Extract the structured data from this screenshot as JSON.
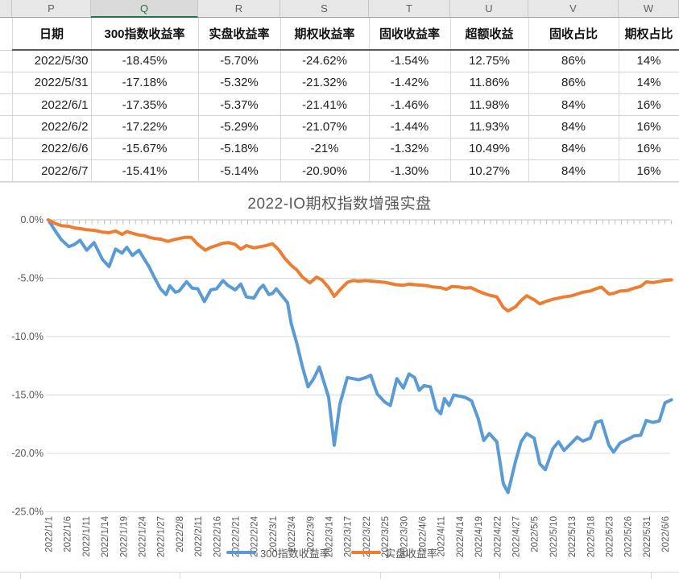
{
  "spreadsheet": {
    "column_letters": [
      "P",
      "Q",
      "R",
      "S",
      "T",
      "U",
      "V",
      "W"
    ],
    "selected_column": "Q",
    "table": {
      "headers": [
        "日期",
        "300指数收益率",
        "实盘收益率",
        "期权收益率",
        "固收收益率",
        "超额收益",
        "固收占比",
        "期权占比"
      ],
      "rows": [
        [
          "2022/5/30",
          "-18.45%",
          "-5.70%",
          "-24.62%",
          "-1.54%",
          "12.75%",
          "86%",
          "14%"
        ],
        [
          "2022/5/31",
          "-17.18%",
          "-5.32%",
          "-21.32%",
          "-1.42%",
          "11.86%",
          "86%",
          "14%"
        ],
        [
          "2022/6/1",
          "-17.35%",
          "-5.37%",
          "-21.41%",
          "-1.46%",
          "11.98%",
          "84%",
          "16%"
        ],
        [
          "2022/6/2",
          "-17.22%",
          "-5.29%",
          "-21.07%",
          "-1.44%",
          "11.93%",
          "84%",
          "16%"
        ],
        [
          "2022/6/6",
          "-15.67%",
          "-5.18%",
          "-21%",
          "-1.32%",
          "10.49%",
          "84%",
          "16%"
        ],
        [
          "2022/6/7",
          "-15.41%",
          "-5.14%",
          "-20.90%",
          "-1.30%",
          "10.27%",
          "84%",
          "16%"
        ]
      ]
    }
  },
  "chart_data": {
    "type": "line",
    "title": "2022-IO期权指数增强实盘",
    "grid": true,
    "legend_position": "bottom",
    "colors": {
      "index_series": "#5B9BD5",
      "fund_series": "#ED7D31",
      "axis_text": "#595959",
      "gridline": "#d9d9d9",
      "axis_line": "#bfbfbf"
    },
    "y_axis": {
      "unit": "%",
      "min": -25,
      "max": 0,
      "tick_values": [
        0,
        -5,
        -10,
        -15,
        -20,
        -25
      ],
      "tick_labels": [
        "0.0%",
        "-5.0%",
        "-10.0%",
        "-15.0%",
        "-20.0%",
        "-25.0%"
      ]
    },
    "categories": [
      "2022/1/1",
      "2022/1/6",
      "2022/1/11",
      "2022/1/14",
      "2022/1/19",
      "2022/1/24",
      "2022/1/27",
      "2022/2/8",
      "2022/2/11",
      "2022/2/16",
      "2022/2/21",
      "2022/2/24",
      "2022/3/1",
      "2022/3/4",
      "2022/3/9",
      "2022/3/14",
      "2022/3/17",
      "2022/3/22",
      "2022/3/25",
      "2022/3/30",
      "2022/4/6",
      "2022/4/11",
      "2022/4/14",
      "2022/4/19",
      "2022/4/22",
      "2022/4/27",
      "2022/5/5",
      "2022/5/10",
      "2022/5/13",
      "2022/5/18",
      "2022/5/23",
      "2022/5/26",
      "2022/5/31",
      "2022/6/6"
    ],
    "series": [
      {
        "name": "300指数收益率",
        "color": "#5B9BD5",
        "points": [
          [
            0,
            0
          ],
          [
            0.35,
            -0.9
          ],
          [
            0.7,
            -1.7
          ],
          [
            1.1,
            -2.3
          ],
          [
            1.4,
            -2.1
          ],
          [
            1.7,
            -1.75
          ],
          [
            2.05,
            -2.6
          ],
          [
            2.45,
            -1.95
          ],
          [
            2.9,
            -3.4
          ],
          [
            3.25,
            -4.0
          ],
          [
            3.6,
            -2.5
          ],
          [
            3.95,
            -2.85
          ],
          [
            4.2,
            -2.35
          ],
          [
            4.5,
            -3.05
          ],
          [
            4.85,
            -2.6
          ],
          [
            5.15,
            -3.4
          ],
          [
            5.4,
            -4.05
          ],
          [
            5.7,
            -5.0
          ],
          [
            6,
            -5.9
          ],
          [
            6.3,
            -6.4
          ],
          [
            6.5,
            -5.65
          ],
          [
            6.8,
            -6.2
          ],
          [
            7,
            -6.1
          ],
          [
            7.4,
            -5.3
          ],
          [
            7.7,
            -5.85
          ],
          [
            8,
            -5.9
          ],
          [
            8.35,
            -7.0
          ],
          [
            8.7,
            -6.0
          ],
          [
            9,
            -5.9
          ],
          [
            9.35,
            -5.2
          ],
          [
            9.6,
            -5.6
          ],
          [
            10,
            -6.0
          ],
          [
            10.3,
            -5.5
          ],
          [
            10.6,
            -6.6
          ],
          [
            11,
            -6.7
          ],
          [
            11.3,
            -5.9
          ],
          [
            11.5,
            -5.6
          ],
          [
            11.8,
            -6.4
          ],
          [
            12,
            -6.3
          ],
          [
            12.2,
            -5.9
          ],
          [
            12.5,
            -6.5
          ],
          [
            12.8,
            -7.1
          ],
          [
            13,
            -8.9
          ],
          [
            13.3,
            -10.6
          ],
          [
            13.6,
            -12.6
          ],
          [
            13.9,
            -14.3
          ],
          [
            14.2,
            -13.6
          ],
          [
            14.5,
            -12.6
          ],
          [
            15,
            -15.2
          ],
          [
            15.3,
            -19.3
          ],
          [
            15.6,
            -15.8
          ],
          [
            16,
            -13.5
          ],
          [
            16.3,
            -13.6
          ],
          [
            16.6,
            -13.7
          ],
          [
            17,
            -13.5
          ],
          [
            17.25,
            -13.3
          ],
          [
            17.6,
            -14.9
          ],
          [
            18,
            -15.6
          ],
          [
            18.3,
            -15.9
          ],
          [
            18.65,
            -13.6
          ],
          [
            19,
            -14.4
          ],
          [
            19.3,
            -13.2
          ],
          [
            19.6,
            -13.5
          ],
          [
            19.85,
            -14.6
          ],
          [
            20.1,
            -14.2
          ],
          [
            20.45,
            -14.3
          ],
          [
            20.75,
            -16.2
          ],
          [
            21,
            -16.6
          ],
          [
            21.2,
            -15.3
          ],
          [
            21.45,
            -15.9
          ],
          [
            21.7,
            -15.0
          ],
          [
            22,
            -15.1
          ],
          [
            22.3,
            -15.2
          ],
          [
            22.65,
            -15.5
          ],
          [
            23,
            -17.0
          ],
          [
            23.3,
            -18.9
          ],
          [
            23.6,
            -18.3
          ],
          [
            24,
            -19.0
          ],
          [
            24.35,
            -22.6
          ],
          [
            24.6,
            -23.35
          ],
          [
            25,
            -20.7
          ],
          [
            25.3,
            -19.0
          ],
          [
            25.6,
            -18.3
          ],
          [
            26,
            -18.7
          ],
          [
            26.3,
            -20.9
          ],
          [
            26.6,
            -21.4
          ],
          [
            27,
            -19.6
          ],
          [
            27.3,
            -19.0
          ],
          [
            27.6,
            -19.75
          ],
          [
            28,
            -19.1
          ],
          [
            28.3,
            -18.6
          ],
          [
            28.6,
            -18.95
          ],
          [
            29,
            -18.7
          ],
          [
            29.3,
            -17.35
          ],
          [
            29.6,
            -17.2
          ],
          [
            30,
            -19.3
          ],
          [
            30.25,
            -19.9
          ],
          [
            30.6,
            -19.1
          ],
          [
            31,
            -18.8
          ],
          [
            31.35,
            -18.5
          ],
          [
            31.7,
            -18.45
          ],
          [
            32,
            -17.18
          ],
          [
            32.35,
            -17.35
          ],
          [
            32.7,
            -17.22
          ],
          [
            33,
            -15.67
          ],
          [
            33.35,
            -15.41
          ]
        ]
      },
      {
        "name": "实盘收益率",
        "color": "#ED7D31",
        "points": [
          [
            0,
            0
          ],
          [
            0.35,
            -0.3
          ],
          [
            0.7,
            -0.5
          ],
          [
            1.1,
            -0.55
          ],
          [
            1.4,
            -0.7
          ],
          [
            1.7,
            -0.75
          ],
          [
            2.05,
            -0.85
          ],
          [
            2.45,
            -0.9
          ],
          [
            2.9,
            -1.05
          ],
          [
            3.25,
            -1.1
          ],
          [
            3.6,
            -0.95
          ],
          [
            3.95,
            -1.25
          ],
          [
            4.2,
            -1.0
          ],
          [
            4.5,
            -1.15
          ],
          [
            4.85,
            -1.3
          ],
          [
            5.15,
            -1.35
          ],
          [
            5.4,
            -1.5
          ],
          [
            5.7,
            -1.6
          ],
          [
            6,
            -1.65
          ],
          [
            6.4,
            -1.85
          ],
          [
            6.7,
            -1.7
          ],
          [
            7,
            -1.6
          ],
          [
            7.3,
            -1.5
          ],
          [
            7.65,
            -1.5
          ],
          [
            8,
            -2.1
          ],
          [
            8.4,
            -2.6
          ],
          [
            8.7,
            -2.35
          ],
          [
            9,
            -2.2
          ],
          [
            9.35,
            -2.0
          ],
          [
            9.65,
            -1.95
          ],
          [
            10,
            -2.1
          ],
          [
            10.3,
            -2.5
          ],
          [
            10.6,
            -2.2
          ],
          [
            11,
            -2.4
          ],
          [
            11.35,
            -2.3
          ],
          [
            11.65,
            -2.2
          ],
          [
            12,
            -2.05
          ],
          [
            12.35,
            -2.6
          ],
          [
            12.65,
            -3.3
          ],
          [
            13,
            -3.9
          ],
          [
            13.3,
            -4.3
          ],
          [
            13.6,
            -4.9
          ],
          [
            14,
            -5.4
          ],
          [
            14.35,
            -4.9
          ],
          [
            14.65,
            -5.15
          ],
          [
            15,
            -5.8
          ],
          [
            15.3,
            -6.55
          ],
          [
            15.6,
            -6.0
          ],
          [
            16,
            -5.35
          ],
          [
            16.3,
            -5.2
          ],
          [
            16.6,
            -5.25
          ],
          [
            17,
            -5.2
          ],
          [
            17.3,
            -5.25
          ],
          [
            17.6,
            -5.3
          ],
          [
            18,
            -5.35
          ],
          [
            18.3,
            -5.45
          ],
          [
            18.6,
            -5.55
          ],
          [
            19,
            -5.6
          ],
          [
            19.3,
            -5.5
          ],
          [
            19.6,
            -5.55
          ],
          [
            20,
            -5.6
          ],
          [
            20.3,
            -5.65
          ],
          [
            20.6,
            -5.75
          ],
          [
            21,
            -5.8
          ],
          [
            21.3,
            -5.95
          ],
          [
            21.6,
            -5.7
          ],
          [
            22,
            -5.75
          ],
          [
            22.3,
            -5.85
          ],
          [
            22.6,
            -5.8
          ],
          [
            23,
            -6.1
          ],
          [
            23.3,
            -6.3
          ],
          [
            23.6,
            -6.45
          ],
          [
            24,
            -6.6
          ],
          [
            24.35,
            -7.5
          ],
          [
            24.6,
            -7.8
          ],
          [
            25,
            -7.45
          ],
          [
            25.3,
            -6.9
          ],
          [
            25.6,
            -6.5
          ],
          [
            26,
            -6.85
          ],
          [
            26.3,
            -7.2
          ],
          [
            26.6,
            -7.0
          ],
          [
            27,
            -6.8
          ],
          [
            27.3,
            -6.7
          ],
          [
            27.6,
            -6.6
          ],
          [
            28,
            -6.5
          ],
          [
            28.3,
            -6.35
          ],
          [
            28.6,
            -6.2
          ],
          [
            29,
            -6.1
          ],
          [
            29.3,
            -5.9
          ],
          [
            29.6,
            -5.75
          ],
          [
            30,
            -6.35
          ],
          [
            30.25,
            -6.3
          ],
          [
            30.6,
            -6.1
          ],
          [
            31,
            -6.05
          ],
          [
            31.35,
            -5.85
          ],
          [
            31.7,
            -5.7
          ],
          [
            32,
            -5.32
          ],
          [
            32.35,
            -5.37
          ],
          [
            32.7,
            -5.29
          ],
          [
            33,
            -5.18
          ],
          [
            33.35,
            -5.14
          ]
        ]
      }
    ]
  }
}
